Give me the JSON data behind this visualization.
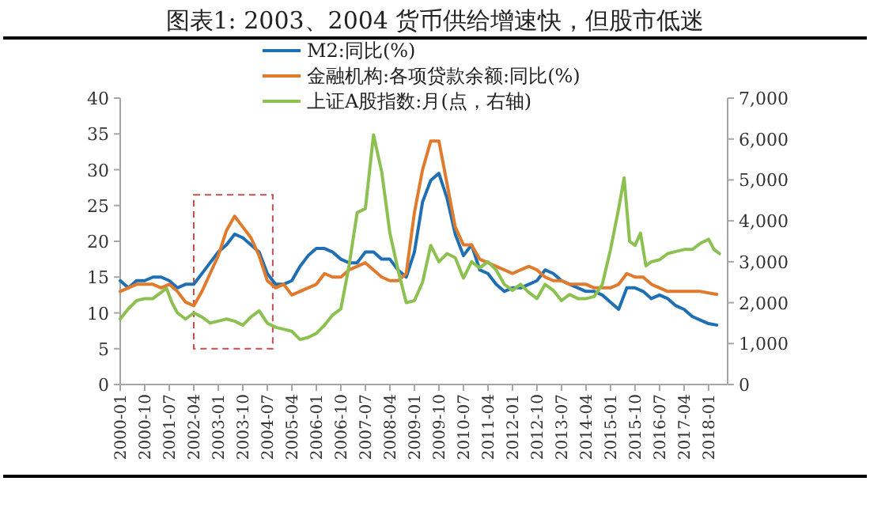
{
  "chart_data": {
    "type": "line",
    "title": "图表1:  2003、2004 货币供给增速快，但股市低迷",
    "legend": "top",
    "marker": "none",
    "line_style": "solid",
    "grid": false,
    "xlim": [
      "2000-01",
      "2018-08"
    ],
    "xticks": [
      "2000-01",
      "2000-10",
      "2001-07",
      "2002-04",
      "2003-01",
      "2003-10",
      "2004-07",
      "2005-04",
      "2006-01",
      "2006-10",
      "2007-07",
      "2008-04",
      "2009-01",
      "2009-10",
      "2010-07",
      "2011-04",
      "2012-01",
      "2012-10",
      "2013-07",
      "2014-04",
      "2015-01",
      "2015-10",
      "2016-07",
      "2017-04",
      "2018-01"
    ],
    "ylim": [
      0,
      40
    ],
    "yticks": [
      0,
      5,
      10,
      15,
      20,
      25,
      30,
      35,
      40
    ],
    "y2lim": [
      0,
      7000
    ],
    "y2ticks": [
      0,
      {
        "value": 1000,
        "label": "1,000"
      },
      {
        "value": 2000,
        "label": "2,000"
      },
      {
        "value": 3000,
        "label": "3,000"
      },
      {
        "value": 4000,
        "label": "4,000"
      },
      {
        "value": 5000,
        "label": "5,000"
      },
      {
        "value": 6000,
        "label": "6,000"
      },
      {
        "value": 7000,
        "label": "7,000"
      }
    ],
    "x": [
      "2000-01",
      "2000-04",
      "2000-07",
      "2000-10",
      "2001-01",
      "2001-04",
      "2001-07",
      "2001-10",
      "2002-01",
      "2002-04",
      "2002-07",
      "2002-10",
      "2003-01",
      "2003-04",
      "2003-07",
      "2003-10",
      "2004-01",
      "2004-04",
      "2004-07",
      "2004-10",
      "2005-01",
      "2005-04",
      "2005-07",
      "2005-10",
      "2006-01",
      "2006-04",
      "2006-07",
      "2006-10",
      "2007-01",
      "2007-04",
      "2007-07",
      "2007-10",
      "2008-01",
      "2008-04",
      "2008-07",
      "2008-10",
      "2009-01",
      "2009-04",
      "2009-07",
      "2009-10",
      "2010-01",
      "2010-04",
      "2010-07",
      "2010-10",
      "2011-01",
      "2011-04",
      "2011-07",
      "2011-10",
      "2012-01",
      "2012-04",
      "2012-07",
      "2012-10",
      "2013-01",
      "2013-04",
      "2013-07",
      "2013-10",
      "2014-01",
      "2014-04",
      "2014-07",
      "2014-10",
      "2015-01",
      "2015-04",
      "2015-07",
      "2015-10",
      "2016-01",
      "2016-04",
      "2016-07",
      "2016-10",
      "2017-01",
      "2017-04",
      "2017-07",
      "2017-10",
      "2018-01",
      "2018-04"
    ],
    "series": [
      {
        "name": "M2:同比(%)",
        "color": "#1f6fb2",
        "values": [
          14.5,
          13.5,
          14.5,
          14.5,
          15.0,
          15.0,
          14.5,
          13.5,
          14.0,
          14.0,
          15.5,
          17.0,
          18.5,
          19.5,
          21.0,
          20.5,
          19.5,
          18.5,
          15.5,
          14.0,
          14.0,
          14.5,
          16.5,
          18.0,
          19.0,
          19.0,
          18.5,
          17.5,
          17.0,
          17.0,
          18.5,
          18.5,
          17.5,
          17.5,
          16.0,
          15.0,
          18.5,
          25.5,
          28.5,
          29.5,
          26.0,
          21.0,
          18.0,
          19.5,
          16.0,
          15.5,
          14.0,
          13.0,
          13.5,
          13.5,
          14.0,
          14.5,
          16.0,
          15.5,
          14.5,
          14.0,
          13.5,
          13.0,
          13.0,
          12.5,
          11.5,
          10.5,
          13.5,
          13.5,
          13.0,
          12.0,
          12.5,
          12.0,
          11.0,
          10.5,
          9.5,
          9.0,
          8.5,
          8.3
        ]
      },
      {
        "name": "金融机构:各项贷款余额:同比(%)",
        "color": "#e07b2e",
        "values": [
          13.0,
          13.5,
          14.0,
          14.0,
          14.0,
          13.5,
          14.0,
          13.0,
          11.5,
          11.0,
          13.0,
          15.5,
          18.0,
          21.5,
          23.5,
          22.0,
          20.5,
          18.0,
          14.5,
          13.5,
          14.0,
          12.5,
          13.0,
          13.5,
          14.0,
          15.5,
          15.0,
          15.0,
          16.0,
          16.5,
          17.0,
          16.0,
          15.0,
          14.5,
          14.5,
          15.5,
          24.0,
          30.0,
          34.0,
          34.0,
          28.0,
          22.0,
          19.5,
          19.5,
          17.5,
          17.0,
          16.5,
          16.0,
          15.5,
          16.0,
          16.5,
          16.0,
          15.0,
          14.5,
          14.5,
          14.0,
          14.0,
          14.0,
          13.5,
          13.5,
          13.5,
          14.0,
          15.5,
          15.0,
          15.0,
          14.0,
          13.5,
          13.0,
          13.0,
          13.0,
          13.0,
          13.0,
          12.8,
          12.6
        ]
      },
      {
        "name": "上证A股指数:月(点，右轴)",
        "color": "#8cc152",
        "axis": "y2",
        "x": [
          "2000-01",
          "2000-04",
          "2000-07",
          "2000-10",
          "2001-01",
          "2001-04",
          "2001-06",
          "2001-08",
          "2001-10",
          "2002-01",
          "2002-04",
          "2002-07",
          "2002-10",
          "2003-01",
          "2003-04",
          "2003-07",
          "2003-10",
          "2004-01",
          "2004-04",
          "2004-07",
          "2004-10",
          "2005-01",
          "2005-04",
          "2005-07",
          "2005-10",
          "2006-01",
          "2006-04",
          "2006-07",
          "2006-10",
          "2007-01",
          "2007-04",
          "2007-07",
          "2007-10",
          "2008-01",
          "2008-04",
          "2008-07",
          "2008-10",
          "2009-01",
          "2009-04",
          "2009-07",
          "2009-10",
          "2010-01",
          "2010-04",
          "2010-07",
          "2010-10",
          "2011-01",
          "2011-04",
          "2011-07",
          "2011-10",
          "2012-01",
          "2012-04",
          "2012-07",
          "2012-10",
          "2013-01",
          "2013-04",
          "2013-07",
          "2013-10",
          "2014-01",
          "2014-04",
          "2014-07",
          "2014-10",
          "2015-01",
          "2015-04",
          "2015-06",
          "2015-08",
          "2015-10",
          "2015-12",
          "2016-02",
          "2016-04",
          "2016-07",
          "2016-10",
          "2017-01",
          "2017-04",
          "2017-07",
          "2017-10",
          "2018-01",
          "2018-03",
          "2018-05"
        ],
        "values": [
          1600,
          1850,
          2050,
          2100,
          2100,
          2250,
          2350,
          2000,
          1750,
          1600,
          1750,
          1650,
          1500,
          1550,
          1600,
          1550,
          1450,
          1650,
          1800,
          1500,
          1400,
          1350,
          1300,
          1100,
          1150,
          1250,
          1450,
          1700,
          1850,
          2900,
          4200,
          4300,
          6100,
          5200,
          3700,
          2800,
          2000,
          2050,
          2500,
          3400,
          3000,
          3200,
          3100,
          2600,
          3000,
          2850,
          3000,
          2800,
          2450,
          2300,
          2450,
          2250,
          2100,
          2450,
          2300,
          2050,
          2200,
          2100,
          2100,
          2150,
          2450,
          3300,
          4300,
          5050,
          3500,
          3400,
          3700,
          2900,
          3000,
          3050,
          3200,
          3250,
          3300,
          3300,
          3450,
          3550,
          3300,
          3200
        ]
      }
    ]
  }
}
